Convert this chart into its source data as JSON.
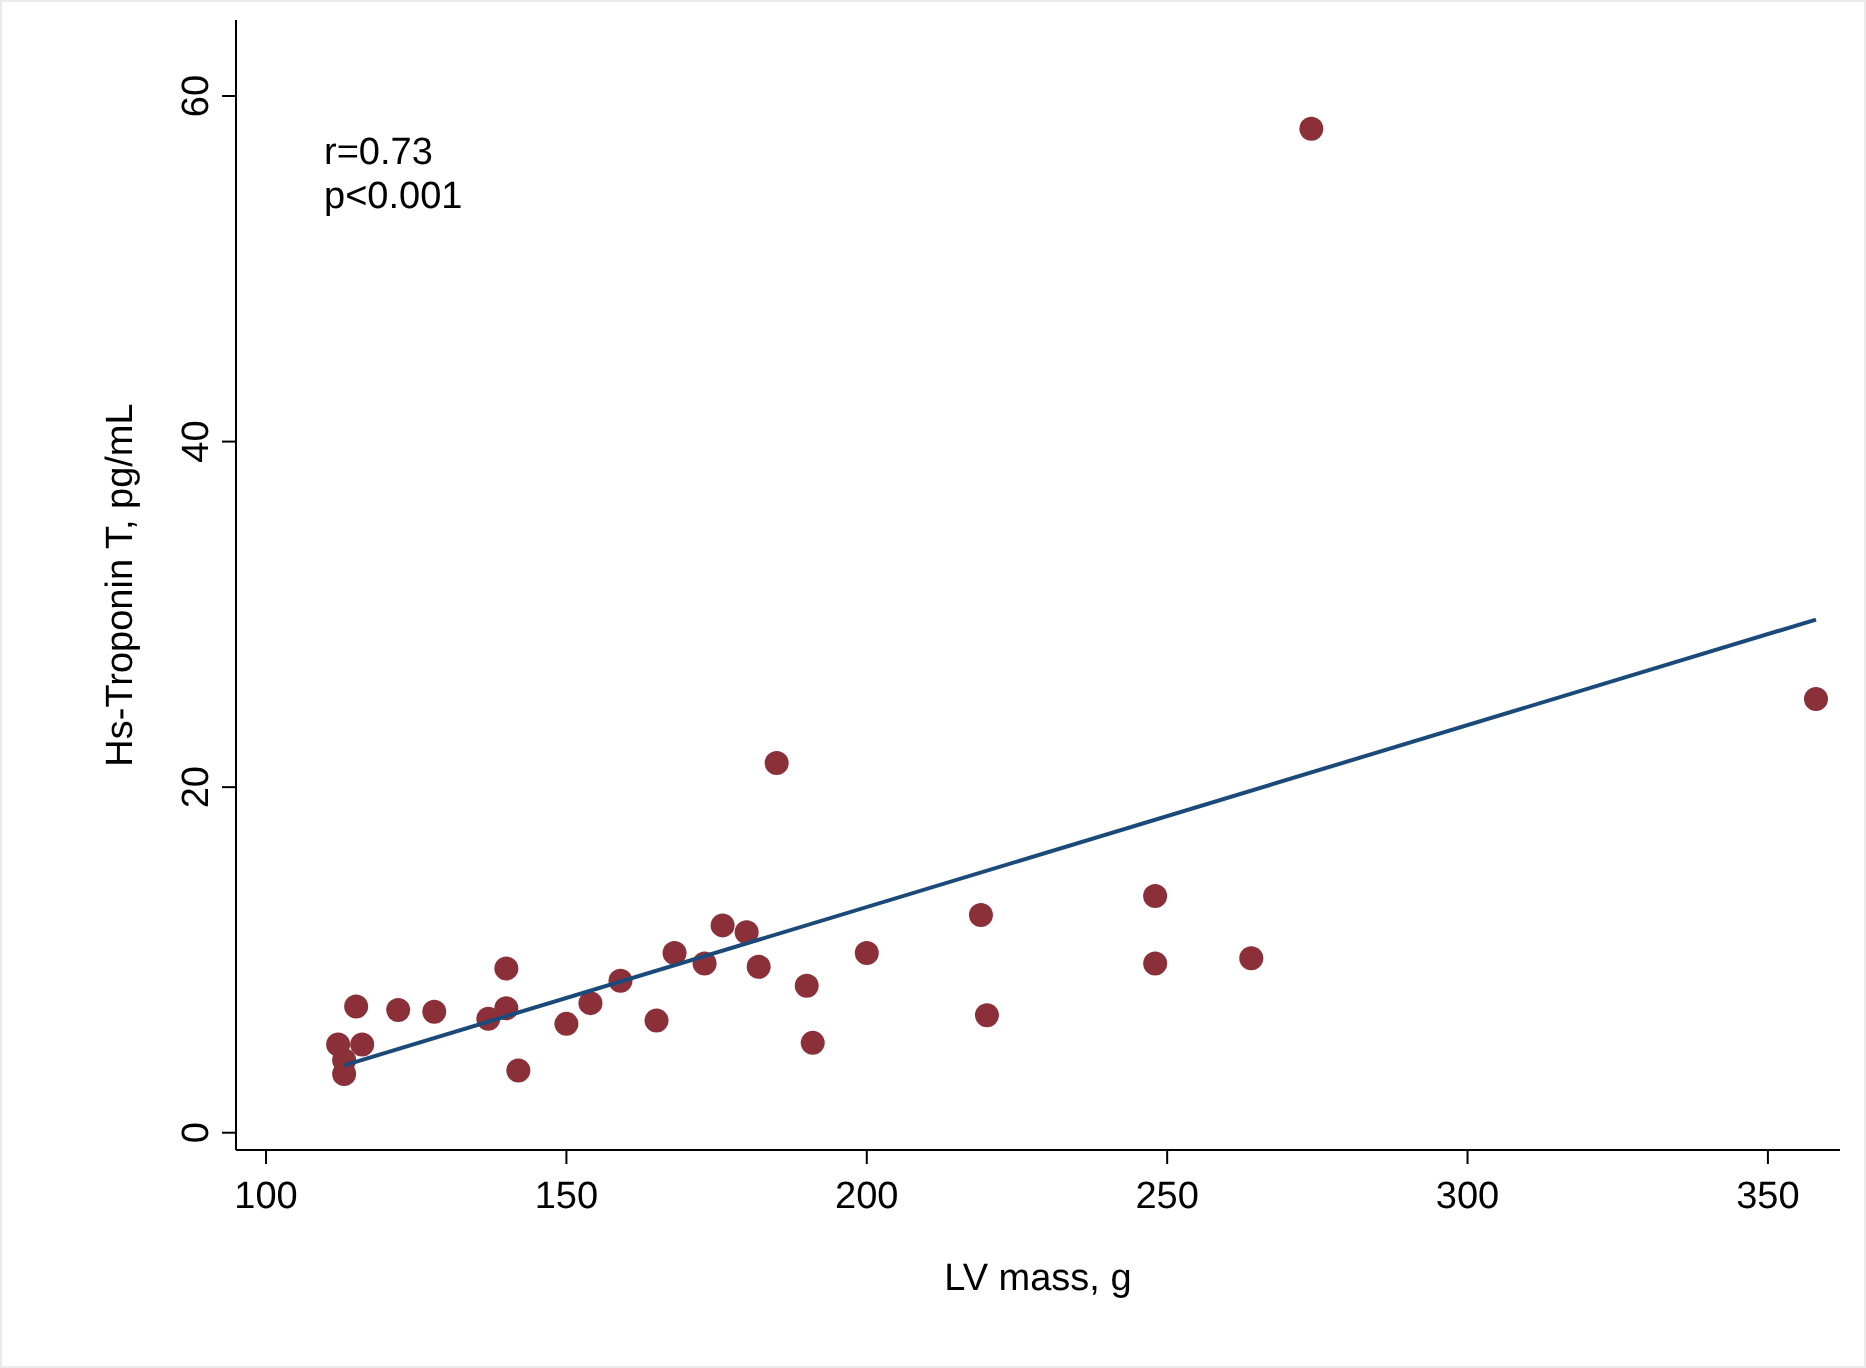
{
  "chart_data": {
    "type": "scatter",
    "xlabel": "LV mass, g",
    "ylabel": "Hs-Troponin T, pg/mL",
    "xlim": [
      95,
      362
    ],
    "xticks": [
      100,
      150,
      200,
      250,
      300,
      350
    ],
    "ylim": [
      -1,
      64.4
    ],
    "yticks": [
      0,
      20,
      40,
      60
    ],
    "grid": false,
    "annotations": [
      "r=0.73",
      "p<0.001"
    ],
    "series": [
      {
        "marker": "circle",
        "color": "#8b3039",
        "x": [
          112,
          113,
          113,
          115,
          116,
          122,
          128,
          137,
          140,
          140,
          142,
          150,
          154,
          159,
          165,
          168,
          173,
          176,
          180,
          182,
          185,
          190,
          191,
          200,
          219,
          220,
          248,
          248,
          264,
          274,
          358
        ],
        "values": [
          5.1,
          4.2,
          3.4,
          7.3,
          5.1,
          7.1,
          7.0,
          6.6,
          9.5,
          7.2,
          3.6,
          6.3,
          7.5,
          8.8,
          6.5,
          10.4,
          9.8,
          12.0,
          11.6,
          9.6,
          21.4,
          8.5,
          5.2,
          10.4,
          12.6,
          6.8,
          13.7,
          9.8,
          10.1,
          58.1,
          25.1
        ]
      },
      {
        "type": "line",
        "color": "#1a4a7a",
        "x": [
          113,
          358
        ],
        "values": [
          3.9,
          29.7
        ]
      }
    ]
  }
}
